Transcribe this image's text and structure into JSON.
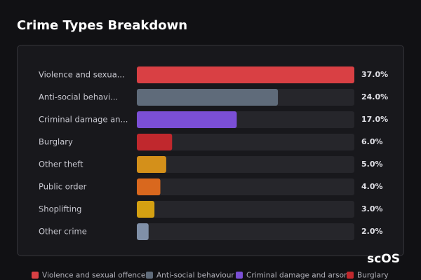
{
  "chart_data": {
    "type": "bar",
    "title": "Crime Types Breakdown",
    "categories": [
      "Violence and sexua...",
      "Anti-social behavi...",
      "Criminal damage an...",
      "Burglary",
      "Other theft",
      "Public order",
      "Shoplifting",
      "Other crime"
    ],
    "values": [
      37.0,
      24.0,
      17.0,
      6.0,
      5.0,
      4.0,
      3.0,
      2.0
    ],
    "value_labels": [
      "37.0%",
      "24.0%",
      "17.0%",
      "6.0%",
      "5.0%",
      "4.0%",
      "3.0%",
      "2.0%"
    ],
    "colors": [
      "#d94044",
      "#5f6b7a",
      "#7b4fd6",
      "#c0282d",
      "#d4901a",
      "#d9681e",
      "#d4a012",
      "#8090a8"
    ],
    "legend": [
      "Violence and sexual offences",
      "Anti-social behaviour",
      "Criminal damage and arson",
      "Burglary"
    ],
    "watermark": "scOS"
  }
}
